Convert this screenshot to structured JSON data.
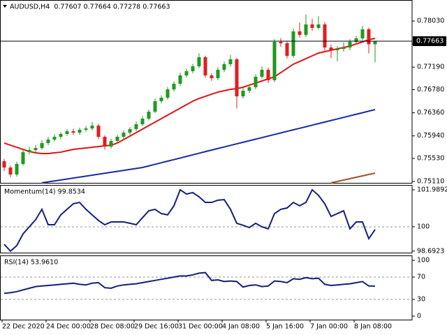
{
  "chart_data": [
    {
      "type": "candlestick",
      "title": "AUDUSD,H4  0.77607 0.77664 0.77278 0.77663",
      "categories": [
        "22 Dec 2020",
        null,
        null,
        null,
        null,
        null,
        null,
        "24 Dec 00:00",
        null,
        null,
        null,
        null,
        null,
        null,
        "28 Dec 08:00",
        null,
        null,
        null,
        null,
        null,
        null,
        "29 Dec 16:00",
        null,
        null,
        null,
        null,
        null,
        null,
        "31 Dec 00:00",
        null,
        null,
        null,
        null,
        null,
        null,
        "4 Jan 08:00",
        null,
        null,
        null,
        null,
        null,
        null,
        "5 Jan 16:00",
        null,
        null,
        null,
        null,
        null,
        null,
        "7 Jan 00:00",
        null,
        null,
        null,
        null,
        null,
        null,
        "8 Jan 08:00",
        null,
        null,
        null
      ],
      "candles": [
        [
          0.7548,
          0.7552,
          0.753,
          0.75364
        ],
        [
          0.75364,
          0.754,
          0.7519,
          0.75237
        ],
        [
          0.75237,
          0.7547,
          0.752,
          0.75428
        ],
        [
          0.75428,
          0.7569,
          0.754,
          0.75643
        ],
        [
          0.75643,
          0.7574,
          0.756,
          0.75682
        ],
        [
          0.75682,
          0.7577,
          0.7564,
          0.7572
        ],
        [
          0.7572,
          0.7586,
          0.7569,
          0.75809
        ],
        [
          0.75809,
          0.7592,
          0.7577,
          0.75872
        ],
        [
          0.75872,
          0.7597,
          0.7584,
          0.75923
        ],
        [
          0.75923,
          0.7601,
          0.7588,
          0.75974
        ],
        [
          0.75974,
          0.7606,
          0.7594,
          0.76024
        ],
        [
          0.76024,
          0.7607,
          0.7596,
          0.75999
        ],
        [
          0.75999,
          0.7609,
          0.7596,
          0.7605
        ],
        [
          0.7605,
          0.7612,
          0.7601,
          0.76075
        ],
        [
          0.76075,
          0.7619,
          0.7604,
          0.76126
        ],
        [
          0.76126,
          0.7616,
          0.7588,
          0.75923
        ],
        [
          0.75923,
          0.7595,
          0.7569,
          0.75745
        ],
        [
          0.75745,
          0.7589,
          0.7571,
          0.75847
        ],
        [
          0.75847,
          0.7596,
          0.7581,
          0.75923
        ],
        [
          0.75923,
          0.7604,
          0.7589,
          0.75999
        ],
        [
          0.75999,
          0.761,
          0.7596,
          0.76063
        ],
        [
          0.76063,
          0.762,
          0.7603,
          0.76151
        ],
        [
          0.76151,
          0.763,
          0.7612,
          0.76253
        ],
        [
          0.76253,
          0.7642,
          0.7622,
          0.7638
        ],
        [
          0.7638,
          0.7662,
          0.7635,
          0.76571
        ],
        [
          0.76571,
          0.7668,
          0.7653,
          0.76634
        ],
        [
          0.76634,
          0.7683,
          0.766,
          0.76786
        ],
        [
          0.76786,
          0.7693,
          0.7675,
          0.76888
        ],
        [
          0.76888,
          0.7709,
          0.7685,
          0.7704
        ],
        [
          0.7704,
          0.7716,
          0.77,
          0.77117
        ],
        [
          0.77117,
          0.7725,
          0.7708,
          0.77206
        ],
        [
          0.77206,
          0.7744,
          0.7717,
          0.77371
        ],
        [
          0.77371,
          0.774,
          0.77,
          0.7704
        ],
        [
          0.7704,
          0.7708,
          0.7694,
          0.7699
        ],
        [
          0.7699,
          0.7719,
          0.7695,
          0.77142
        ],
        [
          0.77142,
          0.7729,
          0.771,
          0.77244
        ],
        [
          0.77244,
          0.7741,
          0.772,
          0.77333
        ],
        [
          0.77333,
          0.7736,
          0.7644,
          0.76659
        ],
        [
          0.76659,
          0.7681,
          0.7662,
          0.76761
        ],
        [
          0.76761,
          0.7688,
          0.7672,
          0.76825
        ],
        [
          0.76825,
          0.7706,
          0.7679,
          0.77015
        ],
        [
          0.77015,
          0.772,
          0.7698,
          0.77142
        ],
        [
          0.77142,
          0.7718,
          0.769,
          0.76952
        ],
        [
          0.76952,
          0.777,
          0.7692,
          0.7765
        ],
        [
          0.7765,
          0.7772,
          0.7756,
          0.77625
        ],
        [
          0.77625,
          0.7766,
          0.7735,
          0.77396
        ],
        [
          0.77396,
          0.7789,
          0.7736,
          0.77841
        ],
        [
          0.77841,
          0.78,
          0.7773,
          0.77777
        ],
        [
          0.77777,
          0.7815,
          0.7774,
          0.77968
        ],
        [
          0.77968,
          0.7807,
          0.7785,
          0.77904
        ],
        [
          0.77904,
          0.7812,
          0.7787,
          0.77968
        ],
        [
          0.77968,
          0.7801,
          0.7749,
          0.77548
        ],
        [
          0.77548,
          0.776,
          0.7735,
          0.77498
        ],
        [
          0.77498,
          0.7757,
          0.773,
          0.77523
        ],
        [
          0.77523,
          0.7764,
          0.7747,
          0.77548
        ],
        [
          0.77548,
          0.777,
          0.775,
          0.7765
        ],
        [
          0.7765,
          0.7776,
          0.776,
          0.77714
        ],
        [
          0.77714,
          0.7794,
          0.7768,
          0.77879
        ],
        [
          0.77879,
          0.7791,
          0.7744,
          0.77607
        ],
        [
          0.77607,
          0.77664,
          0.77278,
          0.77663
        ]
      ],
      "bull_color": "#1e9a1e",
      "bear_color": "#e01e1e",
      "series": [
        {
          "color": "#e01414",
          "values": [
            0.75809,
            0.7577,
            0.75732,
            0.75694,
            0.75656,
            0.75631,
            0.75618,
            0.75618,
            0.75631,
            0.75643,
            0.75669,
            0.75694,
            0.75707,
            0.7572,
            0.75732,
            0.75745,
            0.75758,
            0.7577,
            0.75809,
            0.75872,
            0.75936,
            0.75999,
            0.76063,
            0.76126,
            0.7619,
            0.76253,
            0.76317,
            0.7638,
            0.76444,
            0.76507,
            0.76571,
            0.76621,
            0.76659,
            0.76698,
            0.76736,
            0.76761,
            0.76786,
            0.76799,
            0.76825,
            0.76863,
            0.76901,
            0.76939,
            0.76977,
            0.77015,
            0.77091,
            0.77167,
            0.77244,
            0.77294,
            0.77345,
            0.77396,
            0.77447,
            0.77472,
            0.77498,
            0.77523,
            0.77548,
            0.77574,
            0.77612,
            0.7765,
            0.77688,
            0.77714
          ]
        },
        {
          "color": "#1a2aa8",
          "values": [
            null,
            null,
            null,
            null,
            null,
            null,
            0.75085,
            0.75102,
            0.7512,
            0.75137,
            0.75155,
            0.75172,
            0.7519,
            0.75207,
            0.75225,
            0.75242,
            0.7526,
            0.75277,
            0.75295,
            0.75312,
            0.7533,
            0.75347,
            0.75364,
            0.75393,
            0.75422,
            0.75451,
            0.7548,
            0.75508,
            0.75537,
            0.75566,
            0.75595,
            0.75624,
            0.75653,
            0.75682,
            0.7571,
            0.75738,
            0.75767,
            0.75795,
            0.75823,
            0.75852,
            0.7588,
            0.75908,
            0.75937,
            0.75965,
            0.75993,
            0.76022,
            0.7605,
            0.76078,
            0.76106,
            0.76135,
            0.76163,
            0.76191,
            0.7622,
            0.76248,
            0.76276,
            0.76305,
            0.76333,
            0.76361,
            0.7639,
            0.76418
          ]
        },
        {
          "color": "#a0522d",
          "values": [
            null,
            null,
            null,
            null,
            null,
            null,
            null,
            null,
            null,
            null,
            null,
            null,
            null,
            null,
            null,
            null,
            null,
            null,
            null,
            null,
            null,
            null,
            null,
            null,
            null,
            null,
            null,
            null,
            null,
            null,
            null,
            null,
            null,
            null,
            null,
            null,
            null,
            null,
            null,
            null,
            null,
            null,
            null,
            null,
            null,
            null,
            null,
            null,
            null,
            null,
            null,
            null,
            0.75085,
            0.7511,
            0.75136,
            0.75161,
            0.75187,
            0.75212,
            0.75237,
            0.75263
          ]
        }
      ],
      "current_price": 0.77663,
      "ylim": [
        0.75085,
        0.78412
      ],
      "yticks": [
        {
          "value": 0.7803,
          "label": "0.78030"
        },
        {
          "value": 0.7761,
          "label": "0.77610"
        },
        {
          "value": 0.7719,
          "label": "0.77190"
        },
        {
          "value": 0.7678,
          "label": "0.76780"
        },
        {
          "value": 0.7636,
          "label": "0.76360"
        },
        {
          "value": 0.7594,
          "label": "0.75940"
        },
        {
          "value": 0.7553,
          "label": "0.75530"
        },
        {
          "value": 0.7511,
          "label": "0.75110"
        }
      ]
    },
    {
      "type": "line",
      "title": "Momentum(14) 99.8534",
      "color": "#14207a",
      "values": [
        99.06,
        98.69,
        98.99,
        99.62,
        100.0,
        100.38,
        100.94,
        100.11,
        100.11,
        100.64,
        100.94,
        101.24,
        101.31,
        100.94,
        100.64,
        100.34,
        100.11,
        100.26,
        100.26,
        100.26,
        100.19,
        100.11,
        100.49,
        100.86,
        100.94,
        100.71,
        100.64,
        101.13,
        101.99,
        101.76,
        101.84,
        101.61,
        101.31,
        101.31,
        101.43,
        101.46,
        100.94,
        100.19,
        100.08,
        99.96,
        100.19,
        100.0,
        99.89,
        100.71,
        100.94,
        101.01,
        101.31,
        101.13,
        101.31,
        101.99,
        101.69,
        101.24,
        100.56,
        100.71,
        100.86,
        99.89,
        100.26,
        100.26,
        99.36,
        99.85
      ],
      "ylim": [
        98.61,
        102.25
      ],
      "yticks": [
        101.9892,
        100,
        98.6923
      ],
      "levels": [
        100
      ]
    },
    {
      "type": "line",
      "title": "RSI(14) 53.9610",
      "color": "#14207a",
      "values": [
        41,
        42,
        44,
        47,
        50,
        53,
        54,
        55,
        56,
        57,
        58,
        59,
        57,
        56,
        59,
        60,
        51,
        50,
        54,
        56,
        57,
        58,
        60,
        62,
        64,
        66,
        68,
        70,
        72,
        72,
        74,
        77,
        78,
        64,
        65,
        62,
        63,
        62,
        52,
        55,
        56,
        53,
        54,
        63,
        62,
        60,
        67,
        66,
        69,
        67,
        68,
        57,
        55,
        56,
        57,
        58,
        60,
        62,
        54,
        53.96
      ],
      "ylim": [
        -6.25,
        108.75
      ],
      "yticks": [
        100,
        70,
        30,
        0
      ],
      "levels": [
        70,
        30
      ]
    }
  ]
}
